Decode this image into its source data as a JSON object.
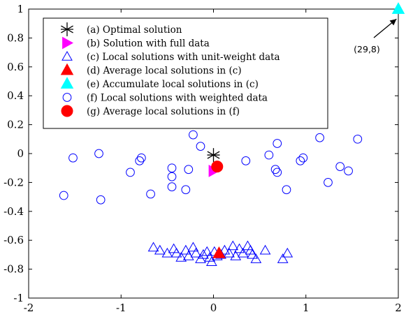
{
  "chart_data": {
    "type": "scatter",
    "title": "",
    "xlabel": "",
    "ylabel": "",
    "xlim": [
      -2,
      2
    ],
    "ylim": [
      -1,
      1
    ],
    "xticks": [
      -2,
      -1,
      0,
      1,
      2
    ],
    "yticks": [
      -1,
      -0.8,
      -0.6,
      -0.4,
      -0.2,
      0,
      0.2,
      0.4,
      0.6,
      0.8,
      1
    ],
    "grid": false,
    "legend_position": "top-left",
    "series": [
      {
        "name": "(a) Optimal solution",
        "marker": "asterisk",
        "color": "#000000",
        "points": [
          [
            0.0,
            -0.01
          ]
        ]
      },
      {
        "name": "(b) Solution with full data",
        "marker": "triangle-right",
        "color": "#ff00ff",
        "points": [
          [
            0.0,
            -0.12
          ]
        ]
      },
      {
        "name": "(c) Local solutions with unit-weight data",
        "marker": "triangle-up-open",
        "color": "#0000ff",
        "points": [
          [
            -0.65,
            -0.65
          ],
          [
            -0.58,
            -0.67
          ],
          [
            -0.5,
            -0.69
          ],
          [
            -0.43,
            -0.66
          ],
          [
            -0.4,
            -0.69
          ],
          [
            -0.35,
            -0.72
          ],
          [
            -0.3,
            -0.67
          ],
          [
            -0.27,
            -0.71
          ],
          [
            -0.22,
            -0.65
          ],
          [
            -0.19,
            -0.69
          ],
          [
            -0.14,
            -0.73
          ],
          [
            -0.11,
            -0.7
          ],
          [
            -0.07,
            -0.68
          ],
          [
            -0.04,
            -0.72
          ],
          [
            -0.02,
            -0.75
          ],
          [
            0.01,
            -0.68
          ],
          [
            0.04,
            -0.71
          ],
          [
            0.08,
            -0.7
          ],
          [
            0.12,
            -0.67
          ],
          [
            0.17,
            -0.69
          ],
          [
            0.21,
            -0.64
          ],
          [
            0.24,
            -0.71
          ],
          [
            0.28,
            -0.66
          ],
          [
            0.32,
            -0.69
          ],
          [
            0.37,
            -0.64
          ],
          [
            0.4,
            -0.67
          ],
          [
            0.42,
            -0.7
          ],
          [
            0.46,
            -0.73
          ],
          [
            0.56,
            -0.67
          ],
          [
            0.75,
            -0.73
          ],
          [
            0.8,
            -0.69
          ]
        ]
      },
      {
        "name": "(d) Average local solutions in (c)",
        "marker": "triangle-up-filled",
        "color": "#ff0000",
        "points": [
          [
            0.06,
            -0.69
          ]
        ]
      },
      {
        "name": "(e) Accumulate local solutions in (c)",
        "marker": "triangle-up-filled",
        "color": "#00ffff",
        "points": [
          [
            2.0,
            1.0
          ]
        ]
      },
      {
        "name": "(f) Local solutions with weighted data",
        "marker": "circle-open",
        "color": "#0000ff",
        "points": [
          [
            -1.62,
            -0.29
          ],
          [
            -1.52,
            -0.03
          ],
          [
            -1.24,
            0.0
          ],
          [
            -1.22,
            -0.32
          ],
          [
            -0.9,
            -0.13
          ],
          [
            -0.8,
            -0.05
          ],
          [
            -0.78,
            -0.03
          ],
          [
            -0.68,
            -0.28
          ],
          [
            -0.45,
            -0.1
          ],
          [
            -0.45,
            -0.16
          ],
          [
            -0.45,
            -0.23
          ],
          [
            -0.3,
            -0.25
          ],
          [
            -0.27,
            -0.11
          ],
          [
            -0.22,
            0.13
          ],
          [
            -0.14,
            0.05
          ],
          [
            0.35,
            -0.05
          ],
          [
            0.6,
            -0.01
          ],
          [
            0.67,
            -0.11
          ],
          [
            0.69,
            -0.13
          ],
          [
            0.69,
            0.07
          ],
          [
            0.79,
            -0.25
          ],
          [
            0.94,
            -0.05
          ],
          [
            0.97,
            -0.03
          ],
          [
            1.15,
            0.11
          ],
          [
            1.24,
            -0.2
          ],
          [
            1.37,
            -0.09
          ],
          [
            1.46,
            -0.12
          ],
          [
            1.56,
            0.1
          ]
        ]
      },
      {
        "name": "(g) Average local solutions in (f)",
        "marker": "circle-filled",
        "color": "#ff0000",
        "points": [
          [
            0.04,
            -0.09
          ]
        ]
      }
    ],
    "annotations": [
      {
        "text": "(29,8)",
        "x": 1.72,
        "y": 0.85,
        "arrow_to": [
          1.98,
          0.97
        ]
      }
    ]
  }
}
